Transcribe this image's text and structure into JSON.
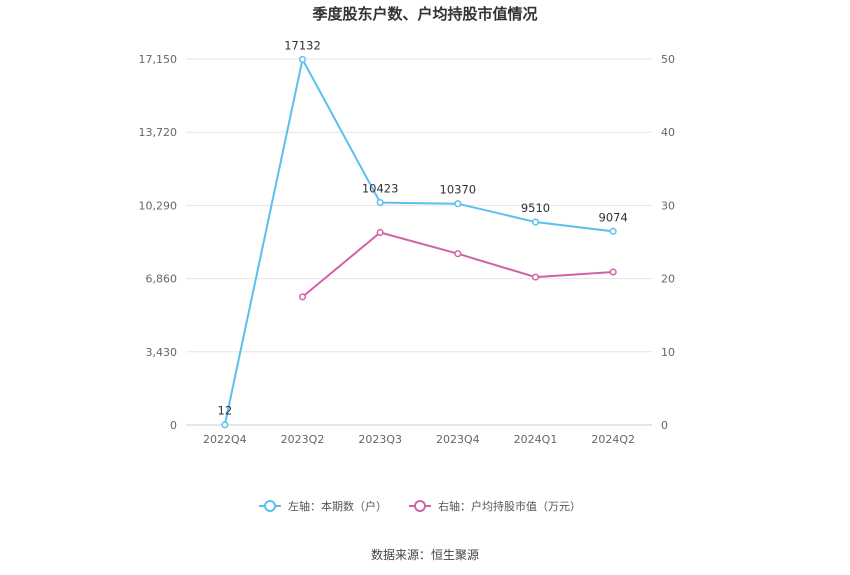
{
  "chart_data": {
    "type": "line",
    "title": "季度股东户数、户均持股市值情况",
    "categories": [
      "2022Q4",
      "2023Q2",
      "2023Q3",
      "2023Q4",
      "2024Q1",
      "2024Q2"
    ],
    "y_left": {
      "ticks": [
        "0",
        "3,430",
        "6,860",
        "10,290",
        "13,720",
        "17,150"
      ],
      "ylim": [
        0,
        17150
      ]
    },
    "y_right": {
      "ticks": [
        "0",
        "10",
        "20",
        "30",
        "40",
        "50"
      ],
      "ylim": [
        0,
        50
      ]
    },
    "series": [
      {
        "name": "左轴：本期数（户）",
        "axis": "left",
        "color": "#5bc0ee",
        "values": [
          12,
          17132,
          10423,
          10370,
          9510,
          9074
        ],
        "data_labels": [
          "12",
          "17132",
          "10423",
          "10370",
          "9510",
          "9074"
        ]
      },
      {
        "name": "右轴：户均持股市值（万元）",
        "axis": "right",
        "color": "#d063a8",
        "values": [
          null,
          17.5,
          26.3,
          23.4,
          20.2,
          20.9
        ]
      }
    ],
    "grid": true,
    "legend_position": "bottom"
  },
  "source_text": "数据来源：恒生聚源"
}
